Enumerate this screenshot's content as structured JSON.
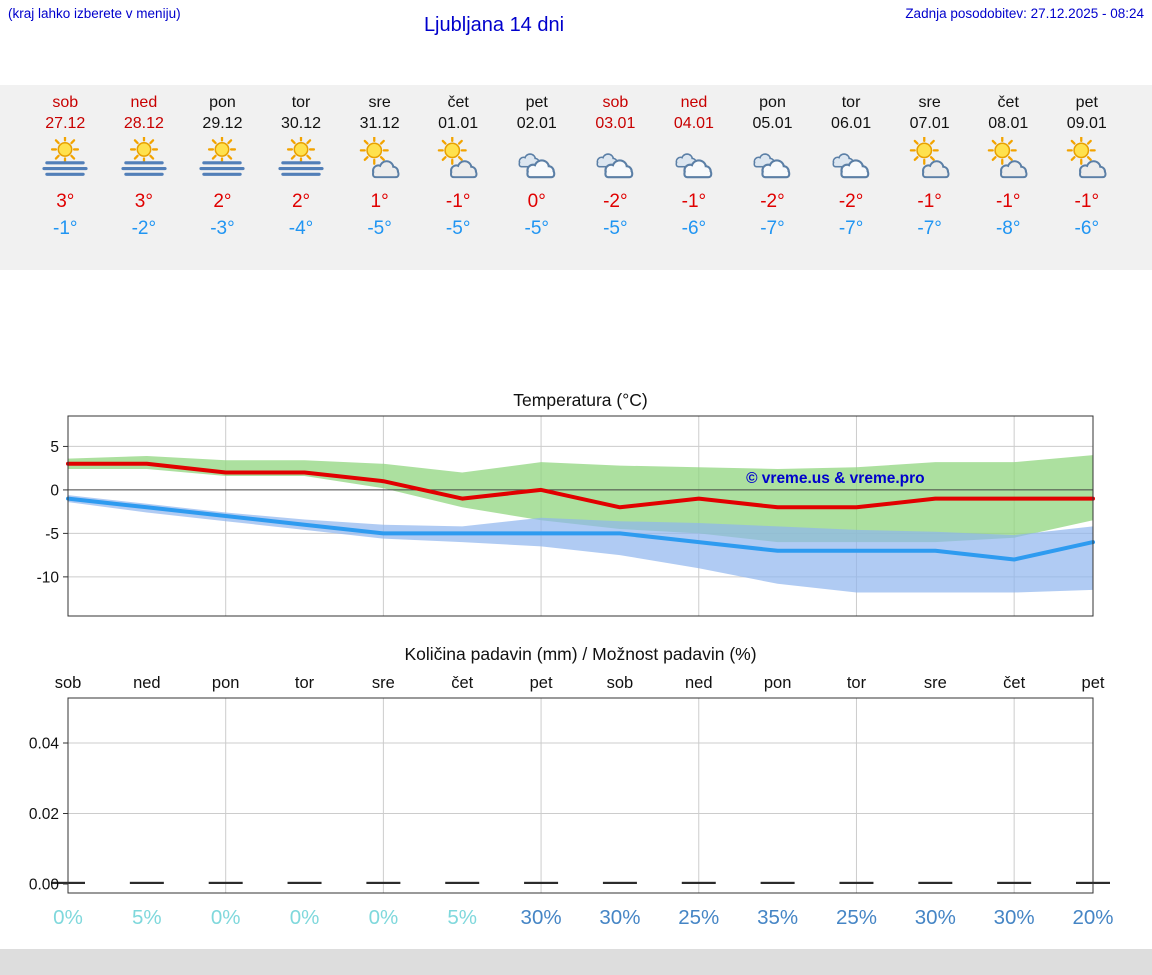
{
  "header": {
    "hint": "(kraj lahko izberete v meniju)",
    "title": "Ljubljana 14 dni",
    "last_update": "Zadnja posodobitev: 27.12.2025 - 08:24"
  },
  "colors": {
    "link_blue": "#0000cc",
    "weekend_red": "#c80000",
    "text_black": "#111111",
    "high_red": "#e00000",
    "low_blue": "#2095f2",
    "percent_low": "#7fd8dc",
    "percent_high": "#4585c5",
    "strip_bg": "#f1f1f1",
    "footer_bg": "#dddddd",
    "grid_gray": "#cccccc",
    "border_dark": "#333333"
  },
  "forecast": {
    "days": [
      {
        "name": "sob",
        "date": "27.12",
        "weekend": true,
        "icon": "sun-fog",
        "high": "3°",
        "low": "-1°"
      },
      {
        "name": "ned",
        "date": "28.12",
        "weekend": true,
        "icon": "sun-fog",
        "high": "3°",
        "low": "-2°"
      },
      {
        "name": "pon",
        "date": "29.12",
        "weekend": false,
        "icon": "sun-fog",
        "high": "2°",
        "low": "-3°"
      },
      {
        "name": "tor",
        "date": "30.12",
        "weekend": false,
        "icon": "sun-fog",
        "high": "2°",
        "low": "-4°"
      },
      {
        "name": "sre",
        "date": "31.12",
        "weekend": false,
        "icon": "sun-cloud",
        "high": "1°",
        "low": "-5°"
      },
      {
        "name": "čet",
        "date": "01.01",
        "weekend": false,
        "icon": "sun-cloud",
        "high": "-1°",
        "low": "-5°"
      },
      {
        "name": "pet",
        "date": "02.01",
        "weekend": false,
        "icon": "cloudy",
        "high": "0°",
        "low": "-5°"
      },
      {
        "name": "sob",
        "date": "03.01",
        "weekend": true,
        "icon": "cloudy",
        "high": "-2°",
        "low": "-5°"
      },
      {
        "name": "ned",
        "date": "04.01",
        "weekend": true,
        "icon": "cloudy",
        "high": "-1°",
        "low": "-6°"
      },
      {
        "name": "pon",
        "date": "05.01",
        "weekend": false,
        "icon": "cloudy",
        "high": "-2°",
        "low": "-7°"
      },
      {
        "name": "tor",
        "date": "06.01",
        "weekend": false,
        "icon": "cloudy",
        "high": "-2°",
        "low": "-7°"
      },
      {
        "name": "sre",
        "date": "07.01",
        "weekend": false,
        "icon": "sun-cloud",
        "high": "-1°",
        "low": "-7°"
      },
      {
        "name": "čet",
        "date": "08.01",
        "weekend": false,
        "icon": "sun-cloud",
        "high": "-1°",
        "low": "-8°"
      },
      {
        "name": "pet",
        "date": "09.01",
        "weekend": false,
        "icon": "sun-cloud",
        "high": "-1°",
        "low": "-6°"
      }
    ]
  },
  "chart_data": [
    {
      "type": "line",
      "title": "Temperatura (°C)",
      "categories": [
        "sob",
        "ned",
        "pon",
        "tor",
        "sre",
        "čet",
        "pet",
        "sob",
        "ned",
        "pon",
        "tor",
        "sre",
        "čet",
        "pet"
      ],
      "series": [
        {
          "name": "high-temp",
          "color": "#e10000",
          "values": [
            3,
            3,
            2,
            2,
            1,
            -1,
            0,
            -2,
            -1,
            -2,
            -2,
            -1,
            -1,
            -1
          ]
        },
        {
          "name": "low-temp",
          "color": "#2e9bf0",
          "values": [
            -1,
            -2,
            -3,
            -4,
            -5,
            -5,
            -5,
            -5,
            -6,
            -7,
            -7,
            -7,
            -8,
            -6
          ]
        }
      ],
      "bands": [
        {
          "name": "high-range",
          "color": "#90d67f",
          "opacity": 0.75,
          "upper": [
            3.6,
            3.9,
            3.4,
            3.4,
            3,
            2,
            3.2,
            2.8,
            2.6,
            2.4,
            2.6,
            3.2,
            3.2,
            4
          ],
          "lower": [
            2.4,
            2.4,
            1.6,
            1.6,
            0.2,
            -2,
            -3.5,
            -4.5,
            -5,
            -6,
            -6,
            -6,
            -5.5,
            -3.5
          ]
        },
        {
          "name": "low-range",
          "color": "#8fb5ee",
          "opacity": 0.7,
          "upper": [
            -0.6,
            -1.6,
            -2.6,
            -3.4,
            -4,
            -4.2,
            -3.2,
            -3.6,
            -3.8,
            -4.2,
            -4.6,
            -4.8,
            -5.2,
            -4.2
          ],
          "lower": [
            -1.4,
            -2.6,
            -3.6,
            -4.6,
            -5.6,
            -6,
            -6.5,
            -7.5,
            -9,
            -10.8,
            -11.8,
            -11.8,
            -11.8,
            -11.5
          ]
        }
      ],
      "yticks": [
        5,
        0,
        -5,
        -10
      ],
      "ylim": [
        -14.5,
        8.5
      ],
      "grid": true,
      "watermark": "© vreme.us & vreme.pro"
    },
    {
      "type": "bar",
      "title": "Količina padavin (mm) / Možnost padavin (%)",
      "categories": [
        "sob",
        "ned",
        "pon",
        "tor",
        "sre",
        "čet",
        "pet",
        "sob",
        "ned",
        "pon",
        "tor",
        "sre",
        "čet",
        "pet"
      ],
      "values": [
        0,
        0,
        0,
        0,
        0,
        0,
        0,
        0,
        0,
        0,
        0,
        0,
        0,
        0
      ],
      "probabilities": [
        "0%",
        "5%",
        "0%",
        "0%",
        "0%",
        "5%",
        "30%",
        "30%",
        "25%",
        "35%",
        "25%",
        "30%",
        "30%",
        "20%"
      ],
      "probability_values": [
        0,
        5,
        0,
        0,
        0,
        5,
        30,
        30,
        25,
        35,
        25,
        30,
        30,
        20
      ],
      "yticks": [
        0,
        0.02,
        0.04
      ],
      "ylim": [
        0,
        0.0528
      ],
      "grid": true
    }
  ]
}
